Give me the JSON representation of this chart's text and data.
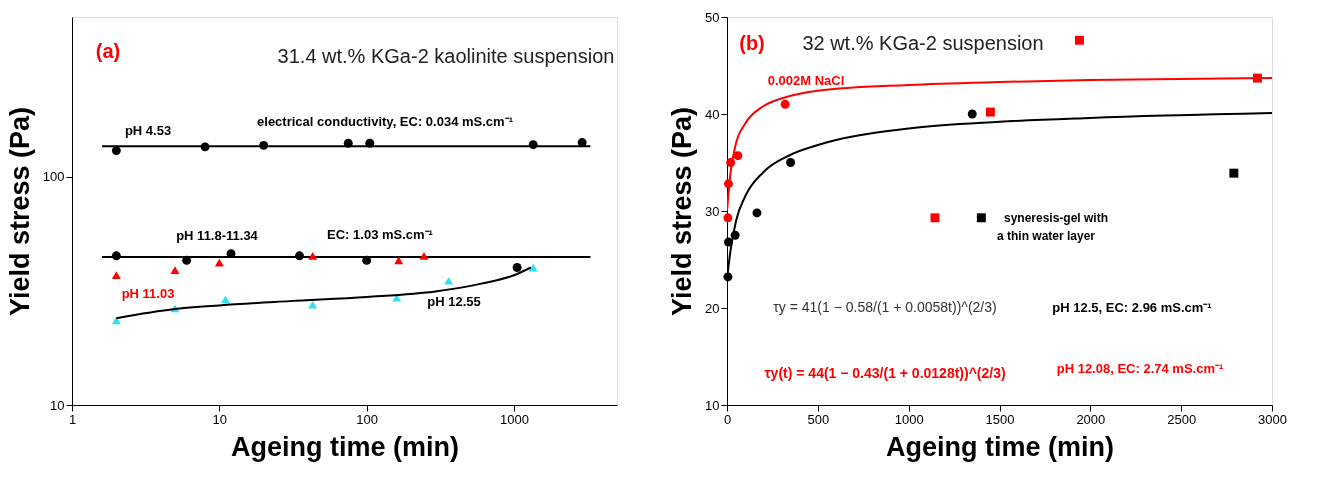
{
  "chart_data": [
    {
      "type": "scatter",
      "title": "31.4 wt.% KGa-2 kaolinite suspension",
      "xlabel": "Ageing time (min)",
      "ylabel": "Yield stress (Pa)",
      "log": "xy",
      "xlim": [
        1,
        5000
      ],
      "ylim": [
        10,
        500
      ],
      "xticks": [
        1,
        10,
        100,
        1000
      ],
      "yticks": [
        10,
        100
      ],
      "grid": false,
      "series": [
        {
          "marker": "circle",
          "color": "#000000",
          "x": [
            2,
            8,
            20,
            75,
            105,
            1350,
            2900
          ],
          "values": [
            130,
            135,
            137,
            140,
            140,
            138,
            141
          ]
        },
        {
          "type": "line",
          "marker": "none",
          "color": "#000000",
          "x": [
            1.6,
            3300
          ],
          "values": [
            136,
            136
          ]
        },
        {
          "marker": "circle",
          "color": "#000000",
          "x": [
            2,
            6,
            12,
            35,
            100,
            1050
          ],
          "values": [
            45,
            43,
            46,
            45,
            43,
            40
          ]
        },
        {
          "type": "line",
          "marker": "none",
          "color": "#000000",
          "x": [
            1.6,
            3300
          ],
          "values": [
            44.5,
            44.5
          ]
        },
        {
          "marker": "triangle",
          "color": "#ff0000",
          "x": [
            2,
            5,
            10,
            43,
            165,
            245
          ],
          "values": [
            37,
            39,
            42,
            45,
            43,
            45
          ]
        },
        {
          "marker": "triangle",
          "color": "#33e0f0",
          "x": [
            2,
            5,
            11,
            43,
            160,
            360,
            1350
          ],
          "values": [
            23.5,
            26.5,
            29,
            27.5,
            29.5,
            35,
            40
          ]
        },
        {
          "type": "line",
          "marker": "none",
          "color": "#000000",
          "x": [
            2,
            5,
            10,
            30,
            100,
            300,
            600,
            1000,
            1300
          ],
          "values": [
            24,
            26.3,
            27.3,
            28.5,
            29.7,
            31.5,
            34,
            37,
            40
          ]
        }
      ],
      "annotations": [
        "(a)",
        "pH 4.53",
        "electrical conductivity, EC: 0.034 mS.cm⁻¹",
        "pH 11.8-11.34",
        "EC: 1.03 mS.cm⁻¹",
        "pH 11.03",
        "pH 12.55"
      ]
    },
    {
      "type": "scatter",
      "title": "32 wt.% KGa-2 suspension",
      "xlabel": "Ageing time (min)",
      "ylabel": "Yield stress (Pa)",
      "xlim": [
        0,
        3000
      ],
      "ylim": [
        10,
        50
      ],
      "xticks": [
        0,
        500,
        1000,
        1500,
        2000,
        2500,
        3000
      ],
      "yticks": [
        10,
        20,
        30,
        40,
        50
      ],
      "grid": false,
      "series": [
        {
          "type": "line",
          "marker": "none",
          "color": "#ff0000",
          "x": [
            0,
            20,
            50,
            100,
            200,
            300,
            500,
            1000,
            1500,
            2000,
            3000
          ],
          "values": [
            30,
            34,
            37,
            39,
            40.8,
            41.6,
            42.4,
            43,
            43.3,
            43.5,
            43.7
          ]
        },
        {
          "type": "line",
          "marker": "none",
          "color": "#000000",
          "x": [
            0,
            20,
            50,
            100,
            200,
            350,
            500,
            1000,
            1500,
            2000,
            3000
          ],
          "values": [
            23,
            26,
            29,
            31.5,
            34,
            35.8,
            36.8,
            38.5,
            39.2,
            39.6,
            40.1
          ]
        },
        {
          "marker": "circle",
          "color": "#ff0000",
          "x": [
            5,
            8,
            20,
            60,
            320
          ],
          "values": [
            29.3,
            32.8,
            35,
            35.7,
            41
          ]
        },
        {
          "marker": "circle",
          "color": "#000000",
          "x": [
            5,
            8,
            45,
            165,
            350,
            1350
          ],
          "values": [
            23.2,
            26.8,
            27.5,
            29.8,
            35,
            40
          ]
        },
        {
          "marker": "square",
          "color": "#ff0000",
          "x": [
            1145,
            1450,
            1940,
            2920
          ],
          "values": [
            29.3,
            40.2,
            47.6,
            43.7
          ]
        },
        {
          "marker": "square",
          "color": "#000000",
          "x": [
            1400,
            2790
          ],
          "values": [
            29.3,
            33.9
          ]
        }
      ],
      "annotations": [
        "(b)",
        "0.002M NaCl",
        "syneresis-gel with",
        "a thin water layer",
        "τy = 41(1 − 0.58/(1 + 0.0058t))^(2/3)",
        "pH 12.5, EC: 2.96 mS.cm⁻¹",
        "τy(t) = 44(1 − 0.43/(1 + 0.0128t))^(2/3)",
        "pH 12.08, EC: 2.74 mS.cm⁻¹"
      ]
    }
  ]
}
